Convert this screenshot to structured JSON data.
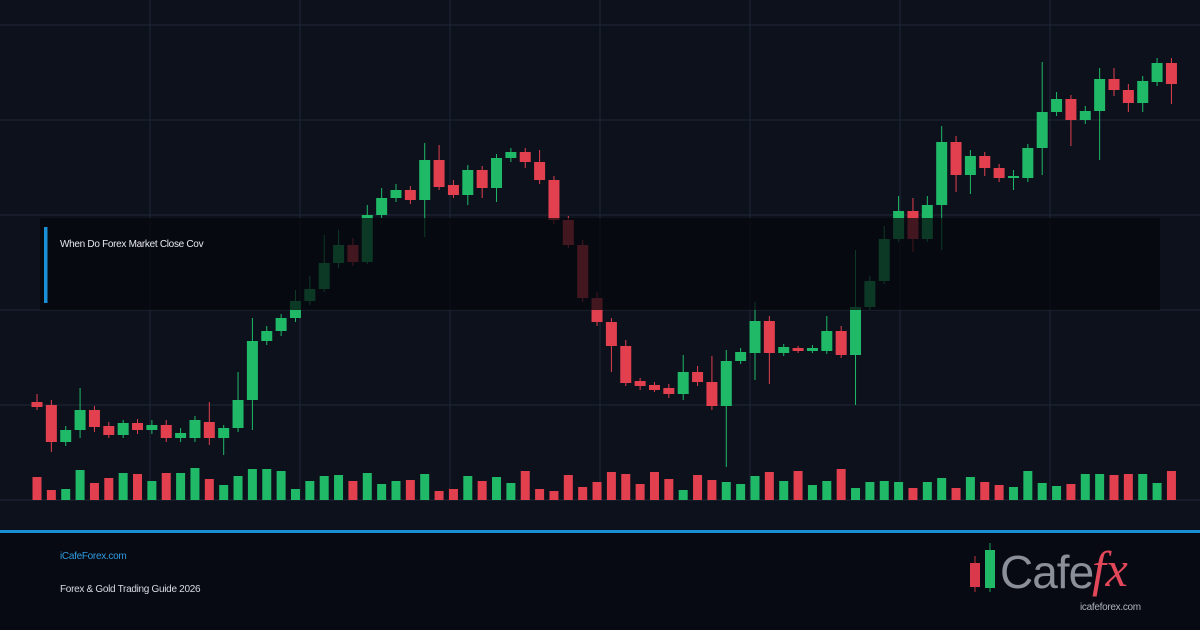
{
  "header": {
    "title": "When Do Forex Market Close Cov"
  },
  "footer": {
    "site": "iCafeForex.com",
    "tagline": "Forex & Gold Trading Guide 2026"
  },
  "logo": {
    "text": "Cafe",
    "accent": "fx",
    "url": "icafeforex.com"
  }
}
